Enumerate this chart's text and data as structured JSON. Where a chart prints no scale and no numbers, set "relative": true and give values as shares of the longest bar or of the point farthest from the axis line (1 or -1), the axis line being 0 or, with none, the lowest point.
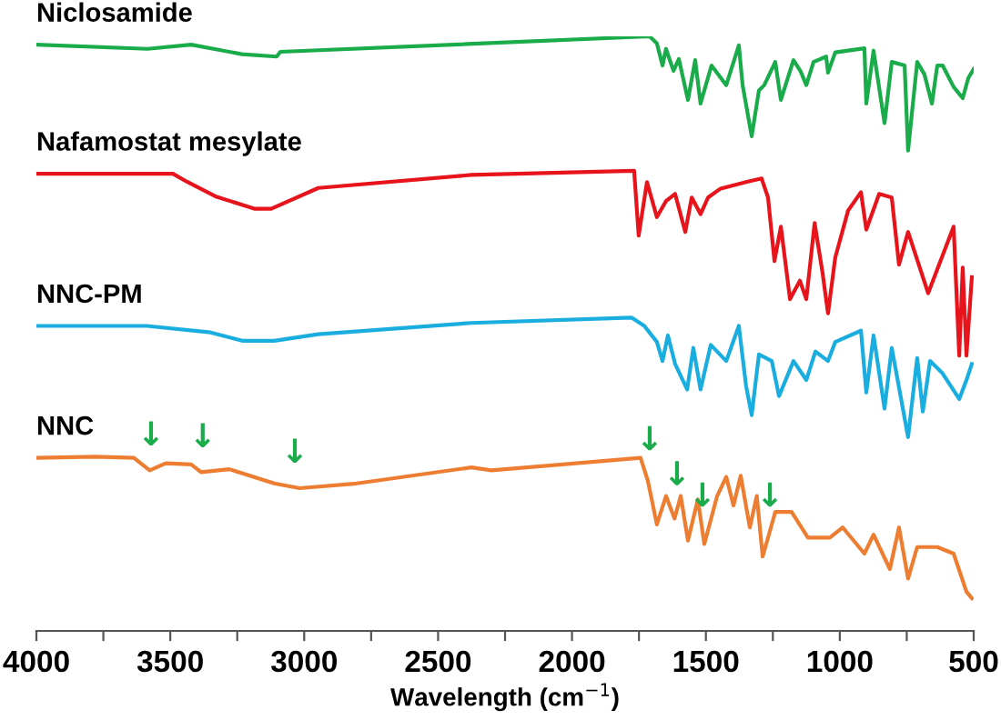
{
  "chart_data": {
    "type": "line",
    "relative": true,
    "xlabel": "Wavelength (cm$^{−1}$)",
    "xlim": [
      4000,
      500
    ],
    "xticks": [
      4000,
      {
        "value": 3750,
        "label": null
      },
      3500,
      {
        "value": 3250,
        "label": null
      },
      3000,
      {
        "value": 2750,
        "label": null
      },
      2500,
      {
        "value": 2250,
        "label": null
      },
      2000,
      {
        "value": 1750,
        "label": null
      },
      1500,
      {
        "value": 1250,
        "label": null
      },
      1000,
      {
        "value": 750,
        "label": null
      },
      500
    ],
    "grid": false,
    "legend": false,
    "tick_labels": "x",
    "series": [
      {
        "name": "Niclosamide",
        "color": "#1aab4b",
        "x": [
          4000,
          3585,
          3422,
          3232,
          3103,
          3089,
          1710,
          1683,
          1662,
          1649,
          1621,
          1601,
          1567,
          1540,
          1520,
          1479,
          1424,
          1377,
          1363,
          1329,
          1302,
          1282,
          1241,
          1220,
          1173,
          1146,
          1125,
          1098,
          1051,
          1044,
          1017,
          908,
          901,
          874,
          833,
          806,
          758,
          745,
          711,
          684,
          656,
          636,
          616,
          575,
          541,
          520,
          500
        ],
        "values": [
          0.986,
          0.979,
          0.986,
          0.97,
          0.966,
          0.974,
          1.0,
          0.988,
          0.951,
          0.979,
          0.942,
          0.962,
          0.893,
          0.96,
          0.887,
          0.951,
          0.918,
          0.985,
          0.918,
          0.832,
          0.909,
          0.918,
          0.957,
          0.893,
          0.96,
          0.941,
          0.918,
          0.957,
          0.966,
          0.939,
          0.973,
          0.98,
          0.887,
          0.976,
          0.854,
          0.957,
          0.951,
          0.808,
          0.957,
          0.936,
          0.887,
          0.951,
          0.951,
          0.915,
          0.896,
          0.93,
          0.945
        ]
      },
      {
        "name": "Nafamostat mesylate",
        "color": "#e8141c",
        "x": [
          4000,
          3490,
          3436,
          3327,
          3184,
          3123,
          2947,
          2376,
          1768,
          1751,
          1720,
          1683,
          1649,
          1615,
          1577,
          1553,
          1520,
          1492,
          1445,
          1350,
          1292,
          1268,
          1244,
          1220,
          1186,
          1149,
          1125,
          1094,
          1064,
          1044,
          1017,
          969,
          921,
          901,
          853,
          806,
          779,
          745,
          670,
          575,
          554,
          541,
          527,
          507
        ],
        "values": [
          0.769,
          0.769,
          0.755,
          0.73,
          0.71,
          0.71,
          0.745,
          0.767,
          0.774,
          0.665,
          0.755,
          0.696,
          0.723,
          0.735,
          0.671,
          0.729,
          0.701,
          0.729,
          0.744,
          0.755,
          0.761,
          0.729,
          0.622,
          0.68,
          0.558,
          0.589,
          0.558,
          0.686,
          0.601,
          0.534,
          0.628,
          0.707,
          0.738,
          0.675,
          0.735,
          0.729,
          0.616,
          0.671,
          0.568,
          0.68,
          0.463,
          0.611,
          0.463,
          0.595
        ]
      },
      {
        "name": "NNC-PM",
        "color": "#1aaee0",
        "x": [
          4000,
          3588,
          3350,
          3232,
          3112,
          2947,
          2376,
          1778,
          1730,
          1683,
          1662,
          1642,
          1615,
          1570,
          1547,
          1520,
          1482,
          1424,
          1377,
          1350,
          1329,
          1302,
          1254,
          1227,
          1173,
          1125,
          1091,
          1044,
          1017,
          921,
          901,
          874,
          833,
          806,
          745,
          711,
          690,
          663,
          616,
          554,
          527,
          507
        ],
        "values": [
          0.513,
          0.513,
          0.502,
          0.488,
          0.488,
          0.499,
          0.518,
          0.527,
          0.513,
          0.486,
          0.454,
          0.497,
          0.449,
          0.406,
          0.476,
          0.406,
          0.481,
          0.454,
          0.513,
          0.412,
          0.363,
          0.465,
          0.454,
          0.395,
          0.454,
          0.422,
          0.47,
          0.454,
          0.486,
          0.505,
          0.401,
          0.497,
          0.374,
          0.476,
          0.326,
          0.459,
          0.369,
          0.454,
          0.433,
          0.39,
          0.422,
          0.449
        ]
      },
      {
        "name": "NNC",
        "color": "#ed7d31",
        "x": [
          4000,
          3778,
          3636,
          3577,
          3517,
          3422,
          3385,
          3280,
          3112,
          3017,
          2804,
          2376,
          2301,
          1744,
          1717,
          1683,
          1649,
          1617,
          1594,
          1567,
          1530,
          1506,
          1458,
          1424,
          1397,
          1370,
          1336,
          1310,
          1288,
          1241,
          1180,
          1119,
          1037,
          989,
          908,
          874,
          813,
          779,
          745,
          711,
          636,
          575,
          527,
          507
        ],
        "values": [
          0.291,
          0.293,
          0.291,
          0.27,
          0.282,
          0.28,
          0.267,
          0.272,
          0.248,
          0.24,
          0.248,
          0.275,
          0.27,
          0.291,
          0.253,
          0.179,
          0.227,
          0.189,
          0.227,
          0.152,
          0.221,
          0.146,
          0.227,
          0.259,
          0.211,
          0.261,
          0.174,
          0.227,
          0.125,
          0.2,
          0.2,
          0.157,
          0.157,
          0.174,
          0.13,
          0.162,
          0.104,
          0.174,
          0.088,
          0.141,
          0.141,
          0.13,
          0.066,
          0.055
        ]
      }
    ],
    "annotations": [
      {
        "text": "↓",
        "x": 3572,
        "y": 0.271
      },
      {
        "text": "↓",
        "x": 3379,
        "y": 0.268
      },
      {
        "text": "↓",
        "x": 3035,
        "y": 0.242
      },
      {
        "text": "↓",
        "x": 1710,
        "y": 0.263
      },
      {
        "text": "↓",
        "x": 1608,
        "y": 0.204
      },
      {
        "text": "↓",
        "x": 1513,
        "y": 0.168
      },
      {
        "text": "↓",
        "x": 1261,
        "y": 0.168
      }
    ]
  }
}
